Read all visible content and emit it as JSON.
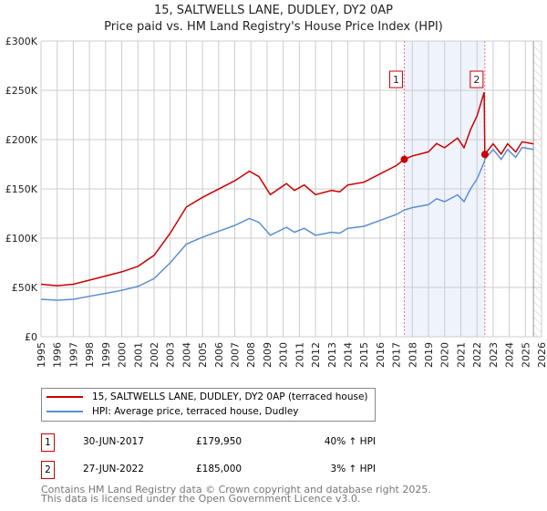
{
  "chart_data": {
    "type": "line",
    "title": "15, SALTWELLS LANE, DUDLEY, DY2 0AP",
    "subtitle": "Price paid vs. HM Land Registry's House Price Index (HPI)",
    "xlim": [
      1995,
      2026
    ],
    "ylim": [
      0,
      300000
    ],
    "y_ticks": [
      {
        "v": 0,
        "label": "£0"
      },
      {
        "v": 50000,
        "label": "£50K"
      },
      {
        "v": 100000,
        "label": "£100K"
      },
      {
        "v": 150000,
        "label": "£150K"
      },
      {
        "v": 200000,
        "label": "£200K"
      },
      {
        "v": 250000,
        "label": "£250K"
      },
      {
        "v": 300000,
        "label": "£300K"
      }
    ],
    "x_ticks": [
      "1995",
      "1996",
      "1997",
      "1998",
      "1999",
      "2000",
      "2001",
      "2002",
      "2003",
      "2004",
      "2005",
      "2006",
      "2007",
      "2008",
      "2009",
      "2010",
      "2011",
      "2012",
      "2013",
      "2014",
      "2015",
      "2016",
      "2017",
      "2018",
      "2019",
      "2020",
      "2021",
      "2022",
      "2023",
      "2024",
      "2025",
      "2026"
    ],
    "grid": true,
    "x": [
      1995,
      1996,
      1997,
      1998,
      1999,
      2000,
      2001,
      2002,
      2003,
      2004,
      2005,
      2006,
      2007,
      2007.9,
      2008.5,
      2009.2,
      2010.2,
      2010.7,
      2011.3,
      2012,
      2013,
      2013.5,
      2014,
      2015,
      2016,
      2017,
      2017.5,
      2018,
      2019,
      2019.5,
      2020,
      2020.8,
      2021.2,
      2021.6,
      2022,
      2022.45,
      2022.49,
      2023,
      2023.5,
      2023.9,
      2024.4,
      2024.8,
      2025.5
    ],
    "series": [
      {
        "name": "15, SALTWELLS LANE, DUDLEY, DY2 0AP (terraced house)",
        "color": "#cc0000",
        "values": [
          53200,
          51800,
          53200,
          57400,
          61600,
          65800,
          71400,
          82600,
          105000,
          131600,
          141400,
          149800,
          158200,
          168000,
          162400,
          144200,
          155400,
          148400,
          154000,
          144200,
          148400,
          147000,
          154000,
          156800,
          165200,
          173600,
          179950,
          183400,
          187600,
          196000,
          191800,
          201600,
          191800,
          210000,
          224000,
          248000,
          185000,
          195700,
          185400,
          195700,
          187500,
          197800,
          195700
        ]
      },
      {
        "name": "HPI: Average price, terraced house, Dudley",
        "color": "#5b8fd0",
        "values": [
          38000,
          37000,
          38000,
          41000,
          44000,
          47000,
          51000,
          59000,
          75000,
          94000,
          101000,
          107000,
          113000,
          120000,
          116000,
          103000,
          111000,
          106000,
          110000,
          103000,
          106000,
          105000,
          110000,
          112000,
          118000,
          124000,
          128500,
          131000,
          134000,
          140000,
          137000,
          144000,
          137000,
          150000,
          160000,
          177000,
          180000,
          190000,
          180000,
          190000,
          182000,
          192000,
          190000
        ]
      }
    ],
    "sales": [
      {
        "label": "1",
        "x": 2017.5,
        "y": 179950
      },
      {
        "label": "2",
        "x": 2022.49,
        "y": 185000
      }
    ],
    "forecast_from": 2025.5,
    "shade_color": "#eef3fc"
  },
  "legend": {
    "items": [
      {
        "label": "15, SALTWELLS LANE, DUDLEY, DY2 0AP (terraced house)",
        "color": "#cc0000"
      },
      {
        "label": "HPI: Average price, terraced house, Dudley",
        "color": "#5b8fd0"
      }
    ]
  },
  "transactions": [
    {
      "num": "1",
      "date": "30-JUN-2017",
      "price": "£179,950",
      "hpi": "40% ↑ HPI"
    },
    {
      "num": "2",
      "date": "27-JUN-2022",
      "price": "£185,000",
      "hpi": "3% ↑ HPI"
    }
  ],
  "footer": {
    "line1": "Contains HM Land Registry data © Crown copyright and database right 2025.",
    "line2": "This data is licensed under the Open Government Licence v3.0."
  }
}
